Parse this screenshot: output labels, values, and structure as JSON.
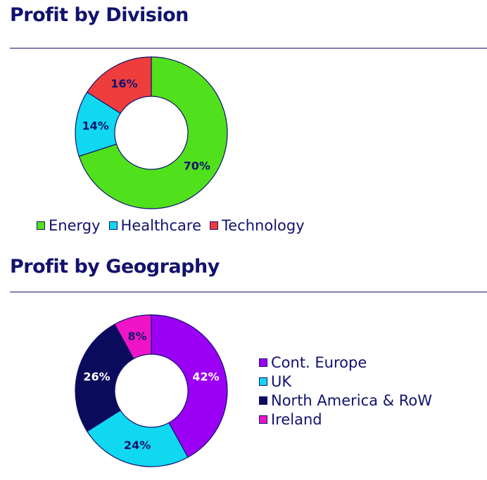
{
  "chart_data": [
    {
      "type": "donut",
      "title": "Profit by Division",
      "unit": "%",
      "legend_position": "bottom",
      "series": [
        {
          "label": "Energy",
          "value": 70,
          "display": "70%",
          "color": "#50e01c",
          "text_color": "#12126e"
        },
        {
          "label": "Healthcare",
          "value": 14,
          "display": "14%",
          "color": "#10d8f0",
          "text_color": "#12126e"
        },
        {
          "label": "Technology",
          "value": 16,
          "display": "16%",
          "color": "#ef3d3d",
          "text_color": "#12126e"
        }
      ]
    },
    {
      "type": "donut",
      "title": "Profit by Geography",
      "unit": "%",
      "legend_position": "right",
      "series": [
        {
          "label": "Cont. Europe",
          "value": 42,
          "display": "42%",
          "color": "#9b00f5",
          "text_color": "#ffffff"
        },
        {
          "label": "UK",
          "value": 24,
          "display": "24%",
          "color": "#10d8f0",
          "text_color": "#12126e"
        },
        {
          "label": "North America & RoW",
          "value": 26,
          "display": "26%",
          "color": "#0b0b5e",
          "text_color": "#ffffff"
        },
        {
          "label": "Ireland",
          "value": 8,
          "display": "8%",
          "color": "#f014c8",
          "text_color": "#12126e"
        }
      ]
    }
  ]
}
